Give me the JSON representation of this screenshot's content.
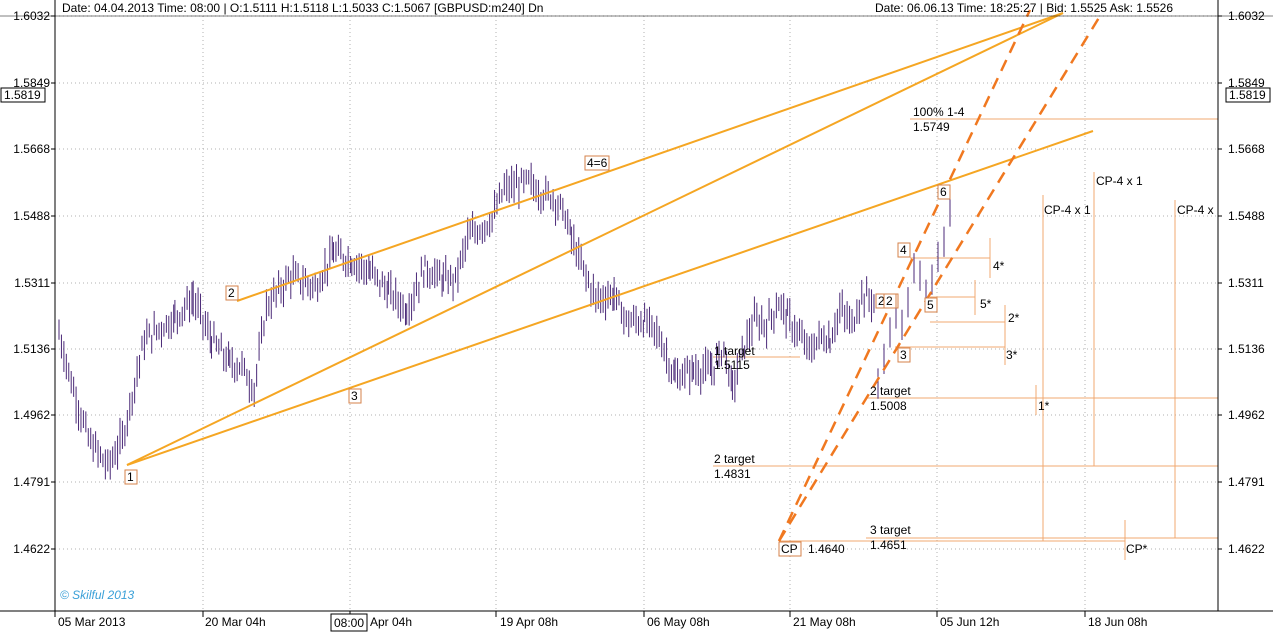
{
  "header": {
    "left_info": "Date: 04.04.2013 Time: 08:00 | O:1.5111 H:1.5118 L:1.5033 C:1.5067 [GBPUSD:m240] Dn",
    "right_info": "Date: 06.06.13 Time: 18:25:27 | Bid: 1.5525 Ask: 1.5526"
  },
  "watermark": "© Skilful 2013",
  "crosshair_time": "08:00",
  "crosshair_price": "1.5819",
  "colors": {
    "candle": "#4b2a78",
    "channel": "#f5a623",
    "fan": "#f07820",
    "level": "#f0a870",
    "marker_border": "#d4824a",
    "grid": "#b0b0b0",
    "text": "#000000"
  },
  "chart_data": {
    "type": "candlestick",
    "symbol": "GBPUSD",
    "timeframe": "m240",
    "y_ticks": [
      "1.6032",
      "1.5849",
      "1.5668",
      "1.5488",
      "1.5311",
      "1.5136",
      "1.4962",
      "1.4791",
      "1.4622"
    ],
    "x_ticks": [
      "05 Mar 2013",
      "20 Mar 04h",
      "Apr 04h",
      "19 Apr 08h",
      "06 May 08h",
      "21 May 08h",
      "05 Jun 12h",
      "18 Jun 08h"
    ],
    "ylim": [
      1.446,
      1.612
    ],
    "close_path": [
      [
        0,
        1.518
      ],
      [
        10,
        1.505
      ],
      [
        24,
        1.49
      ],
      [
        40,
        1.483
      ],
      [
        52,
        1.49
      ],
      [
        70,
        1.516
      ],
      [
        95,
        1.522
      ],
      [
        110,
        1.527
      ],
      [
        125,
        1.516
      ],
      [
        140,
        1.51
      ],
      [
        150,
        1.509
      ],
      [
        160,
        1.503
      ],
      [
        170,
        1.525
      ],
      [
        190,
        1.533
      ],
      [
        210,
        1.53
      ],
      [
        225,
        1.539
      ],
      [
        240,
        1.537
      ],
      [
        255,
        1.534
      ],
      [
        270,
        1.529
      ],
      [
        285,
        1.524
      ],
      [
        300,
        1.535
      ],
      [
        315,
        1.532
      ],
      [
        325,
        1.532
      ],
      [
        335,
        1.543
      ],
      [
        355,
        1.548
      ],
      [
        365,
        1.556
      ],
      [
        375,
        1.557
      ],
      [
        385,
        1.558
      ],
      [
        395,
        1.555
      ],
      [
        405,
        1.554
      ],
      [
        415,
        1.549
      ],
      [
        420,
        1.543
      ],
      [
        428,
        1.536
      ],
      [
        440,
        1.527
      ],
      [
        455,
        1.528
      ],
      [
        465,
        1.521
      ],
      [
        480,
        1.521
      ],
      [
        492,
        1.517
      ],
      [
        505,
        1.506
      ],
      [
        520,
        1.508
      ],
      [
        535,
        1.508
      ],
      [
        545,
        1.514
      ],
      [
        552,
        1.503
      ],
      [
        560,
        1.513
      ],
      [
        570,
        1.521
      ],
      [
        580,
        1.52
      ],
      [
        590,
        1.526
      ],
      [
        597,
        1.522
      ],
      [
        605,
        1.518
      ],
      [
        615,
        1.513
      ],
      [
        625,
        1.517
      ],
      [
        632,
        1.516
      ],
      [
        640,
        1.524
      ],
      [
        650,
        1.52
      ],
      [
        658,
        1.528
      ],
      [
        670,
        1.526
      ]
    ],
    "channel_lines": [
      {
        "from": [
          0,
          1.481
        ],
        "to": [
          0,
          1.5274
        ]
      },
      {
        "from": [
          0,
          1.5274
        ],
        "to": [
          0,
          1.6
        ]
      }
    ],
    "point_labels": [
      {
        "label": "1",
        "price": 1.4791
      },
      {
        "label": "2",
        "price": 1.5274
      },
      {
        "label": "3",
        "price": 1.4985
      },
      {
        "label": "4=6",
        "price": 1.561
      },
      {
        "label": "2'",
        "price": 1.5256
      },
      {
        "label": "2",
        "price": 1.5256
      },
      {
        "label": "3",
        "price": 1.5133
      },
      {
        "label": "4",
        "price": 1.5392
      },
      {
        "label": "5",
        "price": 1.525
      },
      {
        "label": "6",
        "price": 1.5561
      },
      {
        "label": "CP",
        "price": 1.464
      }
    ],
    "annotations": [
      {
        "text": "100% 1-4",
        "value": "1.5749"
      },
      {
        "text": "1 target",
        "value": "1.5115"
      },
      {
        "text": "2 target",
        "value": "1.5008"
      },
      {
        "text": "2 target",
        "value": "1.4831"
      },
      {
        "text": "3 target",
        "value": "1.4651"
      },
      {
        "text": "CP",
        "value": "1.4640"
      }
    ],
    "projection_labels": [
      "CP-4 x 1",
      "CP-4 x 1",
      "CP-4 x",
      "4*",
      "5*",
      "2*",
      "3*",
      "1*",
      "CP*"
    ]
  }
}
